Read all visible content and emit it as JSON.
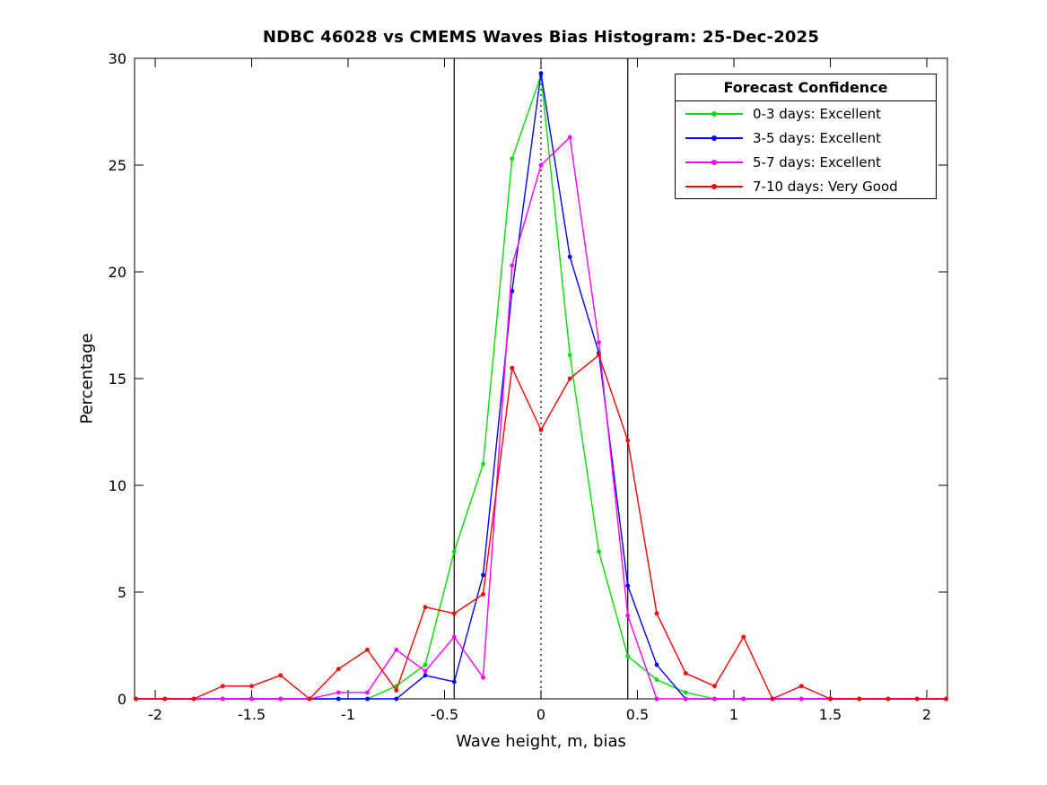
{
  "figure": {
    "title": "NDBC 46028 vs CMEMS Waves Bias Histogram: 25-Dec-2025",
    "xlabel": "Wave height, m, bias",
    "ylabel": "Percentage"
  },
  "legend": {
    "title": "Forecast Confidence",
    "entries": [
      {
        "label": "0-3 days: Excellent",
        "color": "#00e000"
      },
      {
        "label": "3-5 days: Excellent",
        "color": "#0000ff"
      },
      {
        "label": "5-7 days: Excellent",
        "color": "#ff00ff"
      },
      {
        "label": "7-10 days: Very Good",
        "color": "#ff0000"
      }
    ]
  },
  "chart_data": {
    "type": "line",
    "title": "NDBC 46028 vs CMEMS Waves Bias Histogram: 25-Dec-2025",
    "xlabel": "Wave height, m, bias",
    "ylabel": "Percentage",
    "grid": false,
    "legend_position": "top-right",
    "legend_title": "Forecast Confidence",
    "marker": "dot",
    "xlim": [
      -2.107,
      2.107
    ],
    "ylim": [
      0,
      30
    ],
    "xticks": [
      -2,
      -1.5,
      -1,
      -0.5,
      0,
      0.5,
      1,
      1.5,
      2
    ],
    "xtick_labels": [
      "-2",
      "-1.5",
      "-1",
      "-0.5",
      "0",
      "0.5",
      "1",
      "1.5",
      "2"
    ],
    "yticks": [
      0,
      5,
      10,
      15,
      20,
      25,
      30
    ],
    "ytick_labels": [
      "0",
      "5",
      "10",
      "15",
      "20",
      "25",
      "30"
    ],
    "x": [
      -2.1,
      -1.95,
      -1.8,
      -1.65,
      -1.5,
      -1.35,
      -1.2,
      -1.05,
      -0.9,
      -0.75,
      -0.6,
      -0.45,
      -0.3,
      -0.15,
      0,
      0.15,
      0.3,
      0.45,
      0.6,
      0.75,
      0.9,
      1.05,
      1.2,
      1.35,
      1.5,
      1.65,
      1.8,
      1.95,
      2.1
    ],
    "series": [
      {
        "name": "0-3 days: Excellent",
        "color": "#00e000",
        "values": [
          0,
          0,
          0,
          0,
          0,
          0,
          0,
          0,
          0,
          0.6,
          1.6,
          6.9,
          11.0,
          25.3,
          29.2,
          16.1,
          6.9,
          2.0,
          0.9,
          0.3,
          0,
          0,
          0,
          0,
          0,
          0,
          0,
          0,
          0
        ]
      },
      {
        "name": "3-5 days: Excellent",
        "color": "#0000ff",
        "values": [
          0,
          0,
          0,
          0,
          0,
          0,
          0,
          0,
          0,
          0,
          1.1,
          0.8,
          5.8,
          19.1,
          29.3,
          20.7,
          16.2,
          5.3,
          1.6,
          0,
          0,
          0,
          0,
          0,
          0,
          0,
          0,
          0,
          0
        ]
      },
      {
        "name": "5-7 days: Excellent",
        "color": "#ff00ff",
        "values": [
          0,
          0,
          0,
          0,
          0,
          0,
          0,
          0.3,
          0.3,
          2.3,
          1.3,
          2.9,
          1.0,
          20.3,
          25.0,
          26.3,
          16.7,
          3.9,
          0,
          0,
          0,
          0,
          0,
          0,
          0,
          0,
          0,
          0,
          0
        ]
      },
      {
        "name": "7-10 days: Very Good",
        "color": "#ff0000",
        "values": [
          0,
          0,
          0,
          0.6,
          0.6,
          1.1,
          0,
          1.4,
          2.3,
          0.4,
          4.3,
          4.0,
          4.9,
          15.5,
          12.6,
          15.0,
          16.1,
          12.1,
          4.0,
          1.2,
          0.6,
          2.9,
          0,
          0.6,
          0,
          0,
          0,
          0,
          0
        ]
      }
    ],
    "reference_lines": [
      {
        "x": -0.45,
        "style": "solid",
        "color": "#000000"
      },
      {
        "x": 0,
        "style": "dotted",
        "color": "#000000"
      },
      {
        "x": 0.45,
        "style": "solid",
        "color": "#000000"
      }
    ]
  }
}
